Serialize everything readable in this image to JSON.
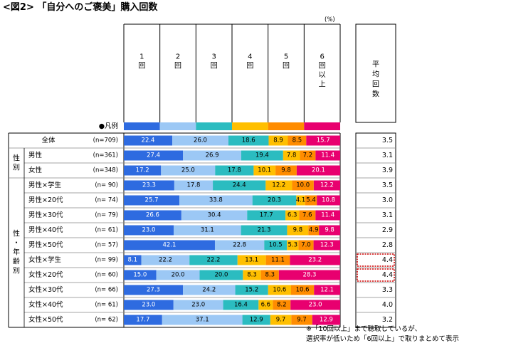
{
  "title": "<図2> 「自分へのご褒美」購入回数",
  "unit_label": "(%)",
  "legend_label": "●凡例",
  "avg_header": "平均回数",
  "footnote_line1": "※「10回以上」まで聴取しているが、",
  "footnote_line2": "選択率が低いため「6回以上」で取りまとめて表示",
  "group_labels": {
    "sex": "性別",
    "sex_age": "性・年齢別"
  },
  "colors": [
    "#2e6be0",
    "#9cc8f5",
    "#2bbcc0",
    "#ffbf00",
    "#ff8c00",
    "#e8006f"
  ],
  "highlight_color": "#cc0000",
  "chart_data": {
    "type": "stacked-bar-horizontal",
    "title": "<図2> 「自分へのご褒美」購入回数",
    "xlim": [
      0,
      100
    ],
    "series_names": [
      "1回",
      "2回",
      "3回",
      "4回",
      "5回",
      "6回以上"
    ],
    "rows": [
      {
        "label": "全体",
        "n": "(n=709)",
        "values": [
          22.4,
          26.0,
          18.6,
          8.9,
          8.5,
          15.7
        ],
        "avg": "3.5"
      },
      {
        "label": "男性",
        "n": "(n=361)",
        "values": [
          27.4,
          26.9,
          19.4,
          7.8,
          7.2,
          11.4
        ],
        "avg": "3.1"
      },
      {
        "label": "女性",
        "n": "(n=348)",
        "values": [
          17.2,
          25.0,
          17.8,
          10.1,
          9.8,
          20.1
        ],
        "avg": "3.9"
      },
      {
        "label": "男性×学生",
        "n": "(n= 90)",
        "values": [
          23.3,
          17.8,
          24.4,
          12.2,
          10.0,
          12.2
        ],
        "avg": "3.5"
      },
      {
        "label": "男性×20代",
        "n": "(n= 74)",
        "values": [
          25.7,
          33.8,
          20.3,
          4.1,
          5.4,
          10.8
        ],
        "avg": "3.0"
      },
      {
        "label": "男性×30代",
        "n": "(n= 79)",
        "values": [
          26.6,
          30.4,
          17.7,
          6.3,
          7.6,
          11.4
        ],
        "avg": "3.1"
      },
      {
        "label": "男性×40代",
        "n": "(n= 61)",
        "values": [
          23.0,
          31.1,
          21.3,
          9.8,
          4.9,
          9.8
        ],
        "avg": "2.9"
      },
      {
        "label": "男性×50代",
        "n": "(n= 57)",
        "values": [
          42.1,
          22.8,
          10.5,
          5.3,
          7.0,
          12.3
        ],
        "avg": "2.8"
      },
      {
        "label": "女性×学生",
        "n": "(n= 99)",
        "values": [
          8.1,
          22.2,
          22.2,
          13.1,
          11.1,
          23.2
        ],
        "avg": "4.4",
        "highlight": true
      },
      {
        "label": "女性×20代",
        "n": "(n= 60)",
        "values": [
          15.0,
          20.0,
          20.0,
          8.3,
          8.3,
          28.3
        ],
        "avg": "4.4",
        "highlight": true
      },
      {
        "label": "女性×30代",
        "n": "(n= 66)",
        "values": [
          27.3,
          24.2,
          15.2,
          10.6,
          10.6,
          12.1
        ],
        "avg": "3.3"
      },
      {
        "label": "女性×40代",
        "n": "(n= 61)",
        "values": [
          23.0,
          23.0,
          16.4,
          6.6,
          8.2,
          23.0
        ],
        "avg": "4.0"
      },
      {
        "label": "女性×50代",
        "n": "(n= 62)",
        "values": [
          17.7,
          37.1,
          12.9,
          9.7,
          9.7,
          12.9
        ],
        "avg": "3.2"
      }
    ]
  }
}
